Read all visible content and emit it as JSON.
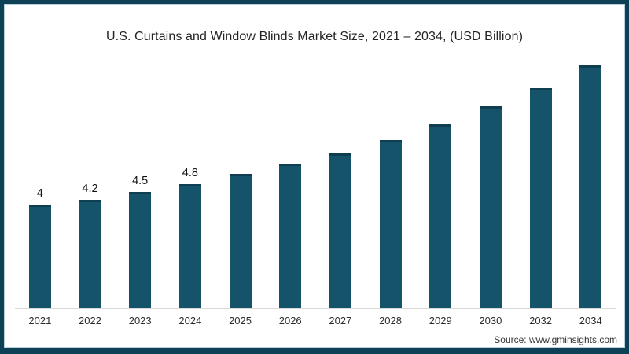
{
  "page": {
    "source": "Source: www.gminsights.com"
  },
  "colors": {
    "bar": "#145369",
    "bar_cap": "#0e3e50",
    "frame_border": "#0e4156",
    "axis_line": "#d9d9d9",
    "title_text": "#222426"
  },
  "chart_data": {
    "type": "bar",
    "title": "U.S. Curtains and Window Blinds Market Size, 2021 – 2034, (USD Billion)",
    "categories": [
      "2021",
      "2022",
      "2023",
      "2024",
      "2025",
      "2026",
      "2027",
      "2028",
      "2029",
      "2030",
      "2032",
      "2034"
    ],
    "values": [
      4,
      4.2,
      4.5,
      4.8,
      5.2,
      5.6,
      6.0,
      6.5,
      7.1,
      7.8,
      8.5,
      9.4
    ],
    "data_labels": [
      "4",
      "4.2",
      "4.5",
      "4.8",
      "",
      "",
      "",
      "",
      "",
      "",
      "",
      ""
    ],
    "xlabel": "",
    "ylabel": "USD Billion",
    "ylim": [
      0,
      10
    ],
    "grid": false,
    "legend": false,
    "y_axis_shown": false
  }
}
